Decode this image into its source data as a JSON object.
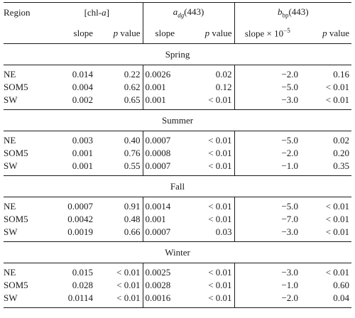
{
  "header": {
    "region_label": "Region",
    "chl_label_pre": "[chl-",
    "chl_label_var": "a",
    "chl_label_post": "]",
    "adg_var": "a",
    "adg_sub": "dg",
    "adg_arg": "(443)",
    "bbp_var": "b",
    "bbp_sub": "bp",
    "bbp_arg": "(443)",
    "slope": "slope",
    "pvalue_p": "p",
    "pvalue_rest": " value",
    "bbp_slope_pre": "slope × 10",
    "bbp_slope_exp": "−5"
  },
  "seasons": [
    {
      "name": "Spring",
      "rows": [
        {
          "region": "NE",
          "chl_slope": "0.014",
          "chl_p": "0.22",
          "adg_slope": "0.0026",
          "adg_p": "0.02",
          "bbp_slope": "−2.0",
          "bbp_p": "0.16"
        },
        {
          "region": "SOM5",
          "chl_slope": "0.004",
          "chl_p": "0.62",
          "adg_slope": "0.001",
          "adg_p": "0.12",
          "bbp_slope": "−5.0",
          "bbp_p": "< 0.01"
        },
        {
          "region": "SW",
          "chl_slope": "0.002",
          "chl_p": "0.65",
          "adg_slope": "0.001",
          "adg_p": "< 0.01",
          "bbp_slope": "−3.0",
          "bbp_p": "< 0.01"
        }
      ]
    },
    {
      "name": "Summer",
      "rows": [
        {
          "region": "NE",
          "chl_slope": "0.003",
          "chl_p": "0.40",
          "adg_slope": "0.0007",
          "adg_p": "< 0.01",
          "bbp_slope": "−5.0",
          "bbp_p": "0.02"
        },
        {
          "region": "SOM5",
          "chl_slope": "0.001",
          "chl_p": "0.76",
          "adg_slope": "0.0008",
          "adg_p": "< 0.01",
          "bbp_slope": "−2.0",
          "bbp_p": "0.20"
        },
        {
          "region": "SW",
          "chl_slope": "0.001",
          "chl_p": "0.55",
          "adg_slope": "0.0007",
          "adg_p": "< 0.01",
          "bbp_slope": "−1.0",
          "bbp_p": "0.35"
        }
      ]
    },
    {
      "name": "Fall",
      "rows": [
        {
          "region": "NE",
          "chl_slope": "0.0007",
          "chl_p": "0.91",
          "adg_slope": "0.0014",
          "adg_p": "< 0.01",
          "bbp_slope": "−5.0",
          "bbp_p": "< 0.01"
        },
        {
          "region": "SOM5",
          "chl_slope": "0.0042",
          "chl_p": "0.48",
          "adg_slope": "0.001",
          "adg_p": "< 0.01",
          "bbp_slope": "−7.0",
          "bbp_p": "< 0.01"
        },
        {
          "region": "SW",
          "chl_slope": "0.0019",
          "chl_p": "0.66",
          "adg_slope": "0.0007",
          "adg_p": "0.03",
          "bbp_slope": "−3.0",
          "bbp_p": "< 0.01"
        }
      ]
    },
    {
      "name": "Winter",
      "rows": [
        {
          "region": "NE",
          "chl_slope": "0.015",
          "chl_p": "< 0.01",
          "adg_slope": "0.0025",
          "adg_p": "< 0.01",
          "bbp_slope": "−3.0",
          "bbp_p": "< 0.01"
        },
        {
          "region": "SOM5",
          "chl_slope": "0.028",
          "chl_p": "< 0.01",
          "adg_slope": "0.0028",
          "adg_p": "< 0.01",
          "bbp_slope": "−1.0",
          "bbp_p": "0.60"
        },
        {
          "region": "SW",
          "chl_slope": "0.0114",
          "chl_p": "< 0.01",
          "adg_slope": "0.0016",
          "adg_p": "< 0.01",
          "bbp_slope": "−2.0",
          "bbp_p": "0.04"
        }
      ]
    }
  ]
}
